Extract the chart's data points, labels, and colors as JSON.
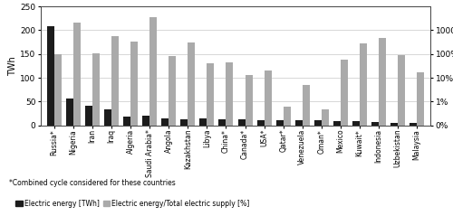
{
  "countries": [
    "Russia*",
    "Nigeria",
    "Iran",
    "Iraq",
    "Algeria",
    "Saudi Arabia*",
    "Angola",
    "Kazakhstan",
    "Libya",
    "China*",
    "Canada*",
    "USA*",
    "Qatar*",
    "Venezuela",
    "Oman*",
    "Mexico",
    "Kuwait*",
    "Indonesia",
    "Uzbekistan",
    "Malaysia"
  ],
  "electric_energy_TWh": [
    208,
    57,
    41,
    33,
    19,
    20,
    14,
    13,
    14,
    12,
    12,
    11,
    11,
    10,
    11,
    9,
    8,
    7,
    5,
    5
  ],
  "electric_ratio_scaled": [
    150,
    217,
    151,
    188,
    176,
    228,
    146,
    175,
    130,
    133,
    105,
    115,
    40,
    85,
    33,
    138,
    172,
    183,
    148,
    111
  ],
  "bar_color_dark": "#1c1c1c",
  "bar_color_light": "#aaaaaa",
  "ylabel_left": "TWh",
  "yticks_left": [
    0,
    50,
    100,
    150,
    200,
    250
  ],
  "ytick_right_positions": [
    0,
    50,
    100,
    150,
    200
  ],
  "ytick_right_labels": [
    "0%",
    "1%",
    "10%",
    "100%",
    "1000%"
  ],
  "grid_color": "#c8c8c8",
  "footnote": "*Combined cycle considered for these countries",
  "legend1": "Electric energy [TWh]",
  "legend2": "Electric energy/Total electric supply [%]"
}
